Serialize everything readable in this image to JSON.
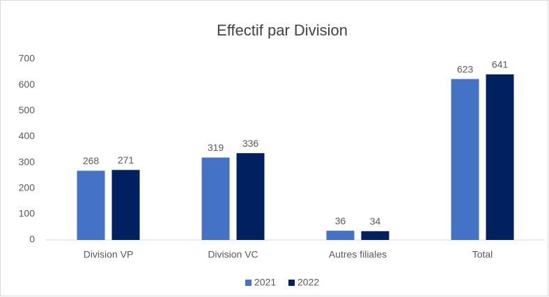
{
  "chart_data": {
    "type": "bar",
    "title": "Effectif par Division",
    "categories": [
      "Division VP",
      "Division VC",
      "Autres filiales",
      "Total"
    ],
    "series": [
      {
        "name": "2021",
        "color": "#4472c4",
        "values": [
          268,
          319,
          36,
          623
        ]
      },
      {
        "name": "2022",
        "color": "#002060",
        "values": [
          271,
          336,
          34,
          641
        ]
      }
    ],
    "ylim": [
      0,
      700
    ],
    "yticks": [
      0,
      100,
      200,
      300,
      400,
      500,
      600,
      700
    ],
    "grid": false,
    "legend": "bottom"
  }
}
